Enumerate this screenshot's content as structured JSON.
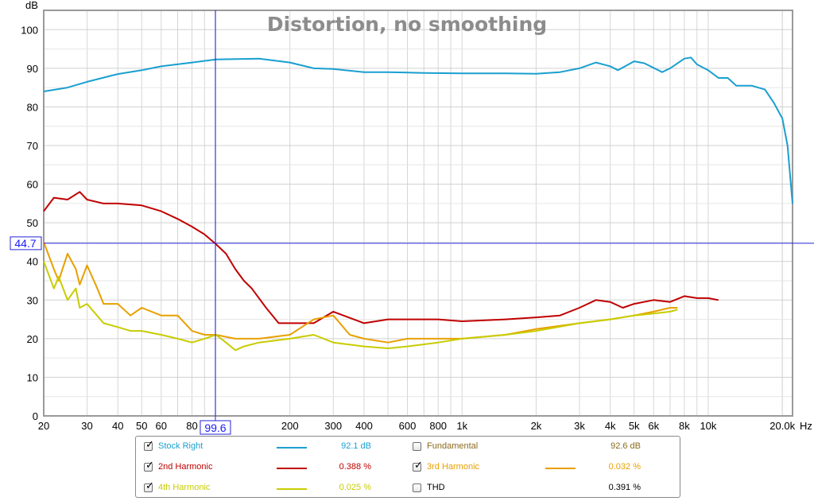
{
  "chart_data": {
    "type": "line",
    "title": "Distortion, no smoothing",
    "xlabel": "Hz",
    "ylabel": "dB",
    "x_scale": "log",
    "xlim": [
      20,
      22000
    ],
    "ylim": [
      0,
      105
    ],
    "grid": true,
    "x_ticks": [
      {
        "v": 20,
        "t": "20"
      },
      {
        "v": 30,
        "t": "30"
      },
      {
        "v": 40,
        "t": "40"
      },
      {
        "v": 50,
        "t": "50"
      },
      {
        "v": 60,
        "t": "60"
      },
      {
        "v": 80,
        "t": "80"
      },
      {
        "v": 200,
        "t": "200"
      },
      {
        "v": 300,
        "t": "300"
      },
      {
        "v": 400,
        "t": "400"
      },
      {
        "v": 600,
        "t": "600"
      },
      {
        "v": 800,
        "t": "800"
      },
      {
        "v": 1000,
        "t": "1k"
      },
      {
        "v": 2000,
        "t": "2k"
      },
      {
        "v": 3000,
        "t": "3k"
      },
      {
        "v": 4000,
        "t": "4k"
      },
      {
        "v": 5000,
        "t": "5k"
      },
      {
        "v": 6000,
        "t": "6k"
      },
      {
        "v": 8000,
        "t": "8k"
      },
      {
        "v": 10000,
        "t": "10k"
      },
      {
        "v": 20000,
        "t": "20.0k"
      }
    ],
    "y_ticks": [
      0,
      10,
      20,
      30,
      40,
      50,
      60,
      70,
      80,
      90,
      100
    ],
    "cursor": {
      "x": 99.6,
      "x_label": "99.6",
      "y": 44.7,
      "y_label": "44.7"
    },
    "series": [
      {
        "name": "Stock Right",
        "color": "#1a9fd0",
        "points": [
          [
            20,
            84
          ],
          [
            25,
            85
          ],
          [
            30,
            86.5
          ],
          [
            40,
            88.5
          ],
          [
            50,
            89.5
          ],
          [
            60,
            90.5
          ],
          [
            80,
            91.5
          ],
          [
            100,
            92.3
          ],
          [
            150,
            92.5
          ],
          [
            200,
            91.5
          ],
          [
            250,
            90
          ],
          [
            300,
            89.8
          ],
          [
            400,
            89
          ],
          [
            500,
            89
          ],
          [
            700,
            88.8
          ],
          [
            1000,
            88.7
          ],
          [
            1500,
            88.7
          ],
          [
            2000,
            88.6
          ],
          [
            2500,
            89
          ],
          [
            3000,
            90
          ],
          [
            3500,
            91.5
          ],
          [
            4000,
            90.5
          ],
          [
            4300,
            89.5
          ],
          [
            5000,
            91.8
          ],
          [
            5500,
            91.3
          ],
          [
            6500,
            89
          ],
          [
            7000,
            90
          ],
          [
            8000,
            92.5
          ],
          [
            8500,
            92.8
          ],
          [
            9000,
            91
          ],
          [
            10000,
            89.5
          ],
          [
            11000,
            87.5
          ],
          [
            12000,
            87.5
          ],
          [
            13000,
            85.5
          ],
          [
            15000,
            85.5
          ],
          [
            17000,
            84.5
          ],
          [
            18500,
            81
          ],
          [
            20000,
            77
          ],
          [
            21000,
            70
          ],
          [
            22000,
            55
          ]
        ]
      },
      {
        "name": "2nd Harmonic",
        "color": "#c00000",
        "points": [
          [
            20,
            53
          ],
          [
            22,
            56.5
          ],
          [
            25,
            56
          ],
          [
            28,
            58
          ],
          [
            30,
            56
          ],
          [
            35,
            55
          ],
          [
            40,
            55
          ],
          [
            50,
            54.5
          ],
          [
            60,
            53
          ],
          [
            70,
            51
          ],
          [
            80,
            49
          ],
          [
            90,
            47
          ],
          [
            100,
            44.5
          ],
          [
            110,
            42
          ],
          [
            120,
            38
          ],
          [
            130,
            35
          ],
          [
            140,
            33
          ],
          [
            160,
            28
          ],
          [
            180,
            24
          ],
          [
            200,
            24
          ],
          [
            250,
            24
          ],
          [
            300,
            27
          ],
          [
            400,
            24
          ],
          [
            500,
            25
          ],
          [
            600,
            25
          ],
          [
            800,
            25
          ],
          [
            1000,
            24.5
          ],
          [
            1500,
            25
          ],
          [
            2000,
            25.5
          ],
          [
            2500,
            26
          ],
          [
            3000,
            28
          ],
          [
            3500,
            30
          ],
          [
            4000,
            29.5
          ],
          [
            4500,
            28
          ],
          [
            5000,
            29
          ],
          [
            6000,
            30
          ],
          [
            7000,
            29.5
          ],
          [
            8000,
            31
          ],
          [
            9000,
            30.5
          ],
          [
            10000,
            30.5
          ],
          [
            11000,
            30
          ]
        ]
      },
      {
        "name": "3rd Harmonic",
        "color": "#e8a000",
        "points": [
          [
            20,
            45
          ],
          [
            22,
            38
          ],
          [
            23,
            35
          ],
          [
            25,
            42
          ],
          [
            27,
            38
          ],
          [
            28,
            34
          ],
          [
            30,
            39
          ],
          [
            33,
            33
          ],
          [
            35,
            29
          ],
          [
            40,
            29
          ],
          [
            45,
            26
          ],
          [
            50,
            28
          ],
          [
            60,
            26
          ],
          [
            70,
            26
          ],
          [
            80,
            22
          ],
          [
            90,
            21
          ],
          [
            100,
            21
          ],
          [
            120,
            20
          ],
          [
            150,
            20
          ],
          [
            200,
            21
          ],
          [
            250,
            25
          ],
          [
            300,
            26
          ],
          [
            350,
            21
          ],
          [
            400,
            20
          ],
          [
            500,
            19
          ],
          [
            600,
            20
          ],
          [
            800,
            20
          ],
          [
            1000,
            20
          ],
          [
            1500,
            21
          ],
          [
            2000,
            22.5
          ],
          [
            3000,
            24
          ],
          [
            4000,
            25
          ],
          [
            5000,
            26
          ],
          [
            6000,
            27
          ],
          [
            7000,
            28
          ],
          [
            7500,
            28
          ]
        ]
      },
      {
        "name": "4th Harmonic",
        "color": "#c8cc00",
        "points": [
          [
            20,
            40
          ],
          [
            22,
            33
          ],
          [
            23,
            36
          ],
          [
            25,
            30
          ],
          [
            27,
            33
          ],
          [
            28,
            28
          ],
          [
            30,
            29
          ],
          [
            35,
            24
          ],
          [
            40,
            23
          ],
          [
            45,
            22
          ],
          [
            50,
            22
          ],
          [
            60,
            21
          ],
          [
            70,
            20
          ],
          [
            80,
            19
          ],
          [
            90,
            20
          ],
          [
            100,
            21
          ],
          [
            110,
            19
          ],
          [
            120,
            17
          ],
          [
            130,
            18
          ],
          [
            150,
            19
          ],
          [
            200,
            20
          ],
          [
            250,
            21
          ],
          [
            300,
            19
          ],
          [
            400,
            18
          ],
          [
            500,
            17.5
          ],
          [
            600,
            18
          ],
          [
            800,
            19
          ],
          [
            1000,
            20
          ],
          [
            1500,
            21
          ],
          [
            2000,
            22
          ],
          [
            3000,
            24
          ],
          [
            4000,
            25
          ],
          [
            5000,
            26
          ],
          [
            6000,
            26.5
          ],
          [
            7000,
            27
          ],
          [
            7500,
            27.5
          ]
        ]
      }
    ]
  },
  "legend": {
    "stock_right": {
      "label": "Stock Right",
      "value": "92.1 dB",
      "checked": true,
      "color": "#1a9fd0"
    },
    "fundamental": {
      "label": "Fundamental",
      "value": "92.6 dB",
      "checked": false,
      "color": "#8c6a1e"
    },
    "h2": {
      "label": "2nd Harmonic",
      "value": "0.388 %",
      "checked": true,
      "color": "#c00000"
    },
    "h3": {
      "label": "3rd Harmonic",
      "value": "0.032 %",
      "checked": true,
      "color": "#e8a000"
    },
    "h4": {
      "label": "4th Harmonic",
      "value": "0.025 %",
      "checked": true,
      "color": "#c8cc00"
    },
    "thd": {
      "label": "THD",
      "value": "0.391 %",
      "checked": false,
      "color": "#000000"
    }
  },
  "check_glyph": "✓"
}
